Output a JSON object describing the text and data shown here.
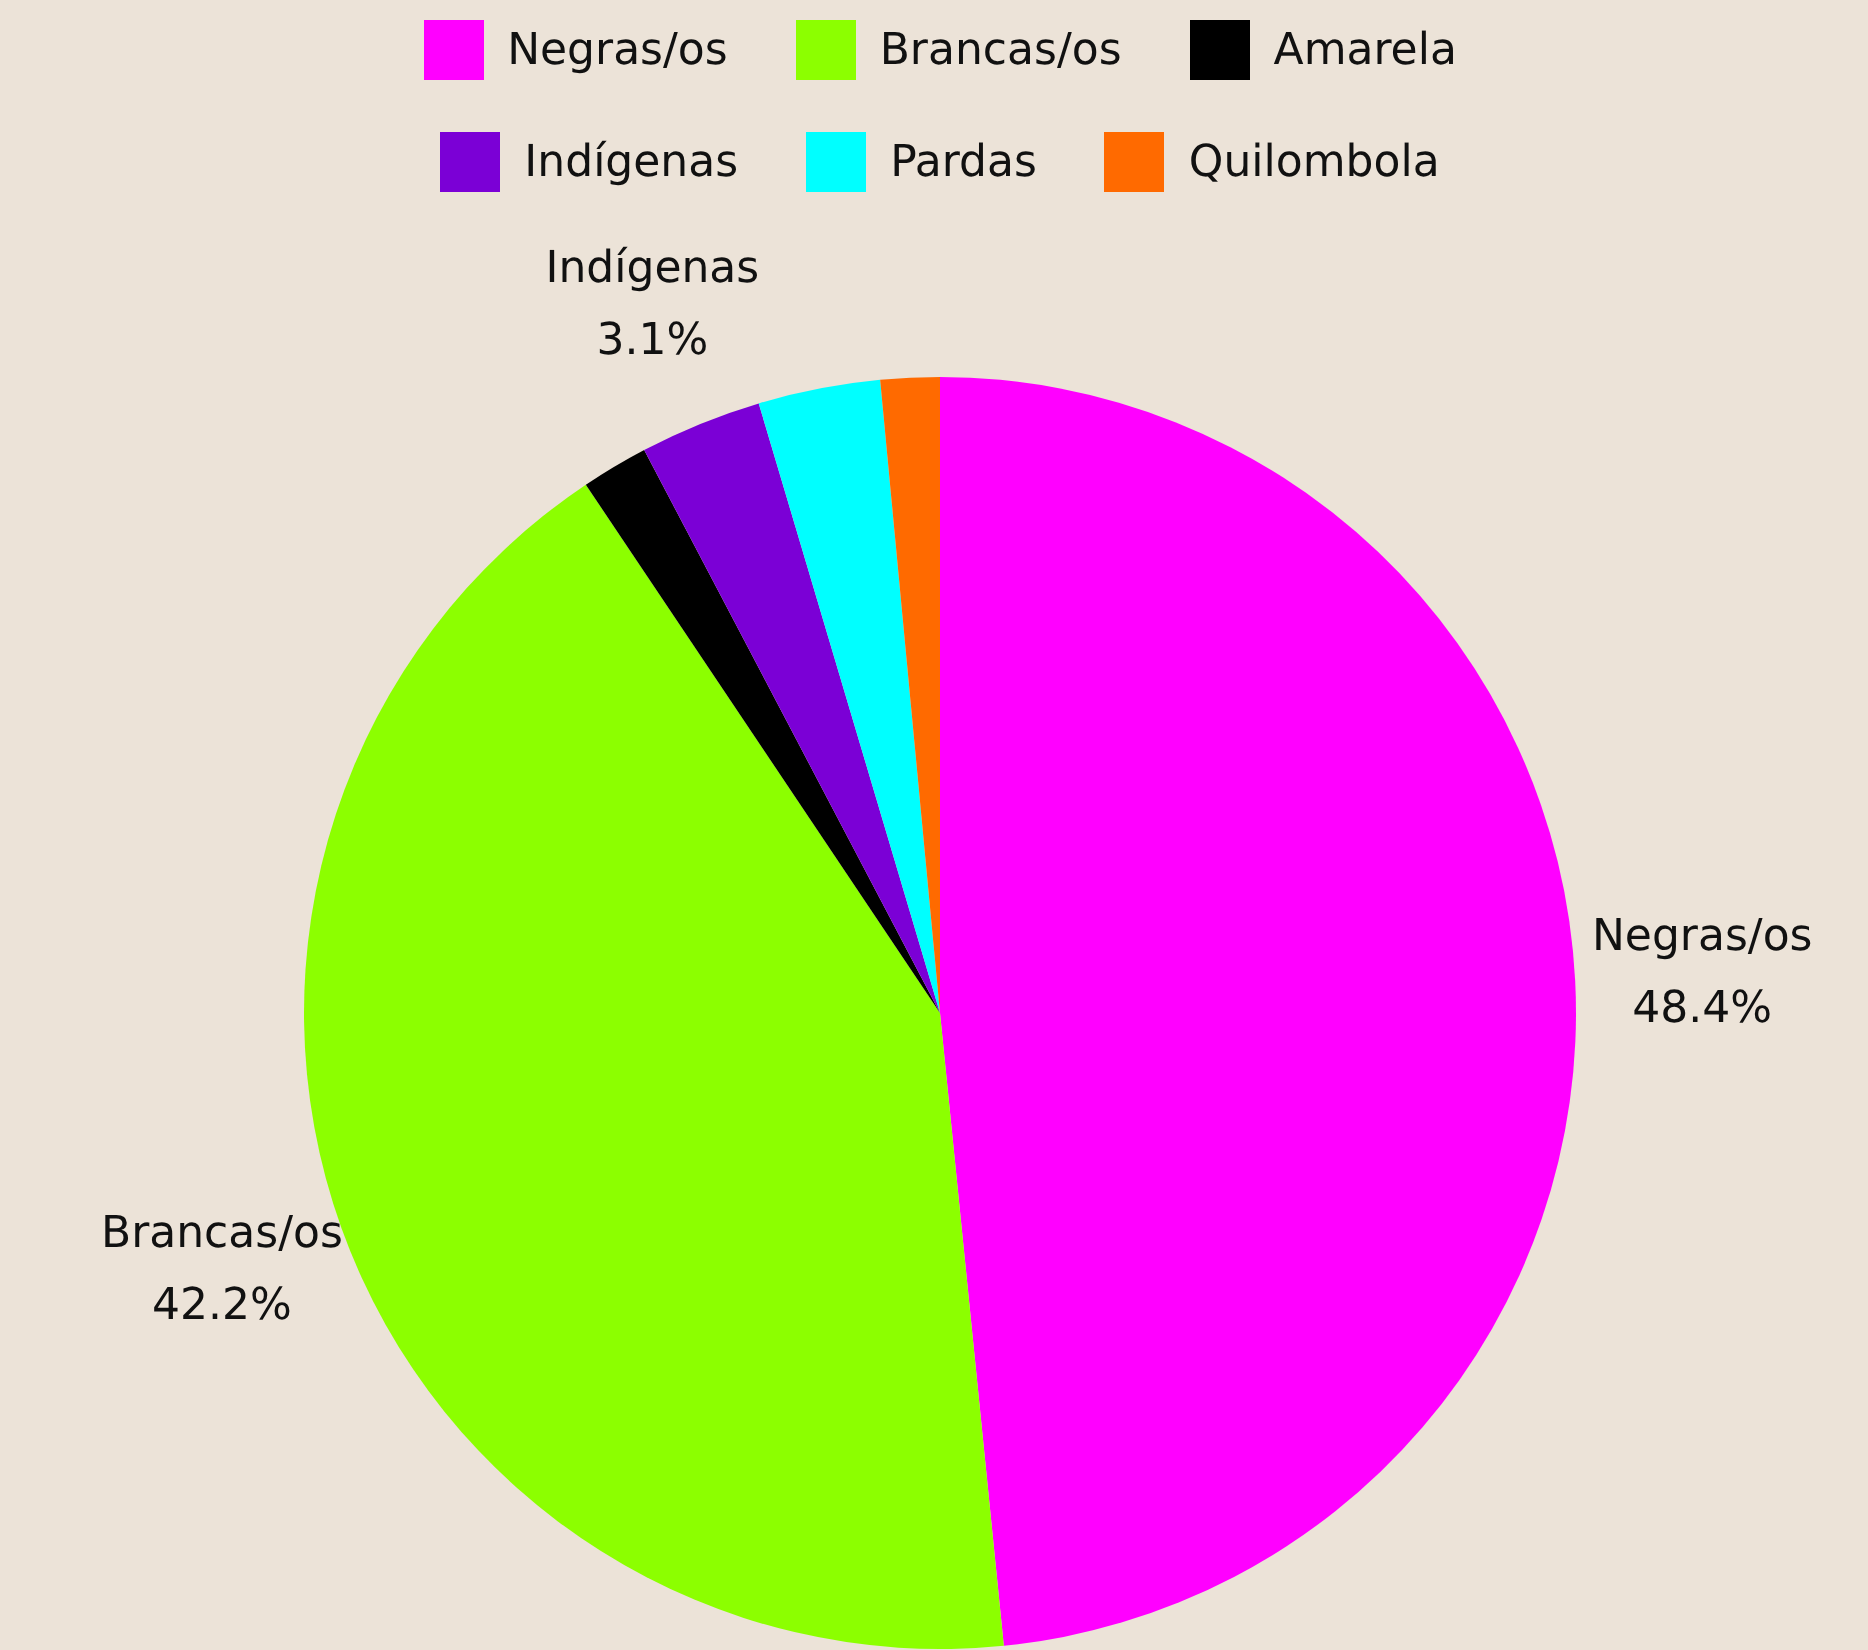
{
  "chart_data": {
    "type": "pie",
    "categories": [
      "Negras/os",
      "Brancas/os",
      "Amarela",
      "Indígenas",
      "Pardas",
      "Quilombola"
    ],
    "values": [
      48.4,
      42.2,
      1.7,
      3.1,
      3.1,
      1.5
    ],
    "colors": [
      "#ff00ff",
      "#8cff00",
      "#000000",
      "#7b00d6",
      "#00ffff",
      "#ff6a00"
    ],
    "value_labels": [
      "48.4%",
      "42.2%",
      null,
      "3.1%",
      null,
      null
    ],
    "legend": "top"
  }
}
